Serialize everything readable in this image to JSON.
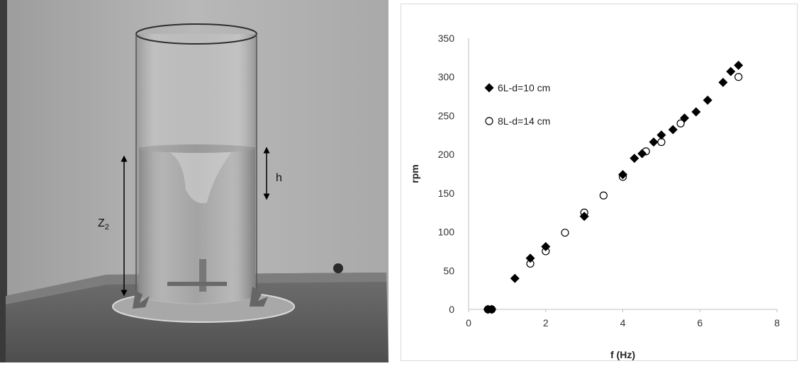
{
  "photo": {
    "labels": {
      "z2_main": "Z",
      "z2_sub": "2",
      "h": "h"
    }
  },
  "chart_data": {
    "type": "scatter",
    "xlabel": "f (Hz)",
    "ylabel": "rpm",
    "xlim": [
      0,
      8
    ],
    "ylim": [
      0,
      350
    ],
    "xticks": [
      0,
      2,
      4,
      6,
      8
    ],
    "yticks": [
      0,
      50,
      100,
      150,
      200,
      250,
      300,
      350
    ],
    "grid": false,
    "legend_position": "top-left",
    "series": [
      {
        "name": "6L-d=10 cm",
        "marker": "diamond-filled",
        "color": "#000000",
        "points": [
          [
            0.5,
            0
          ],
          [
            0.6,
            0
          ],
          [
            1.2,
            40
          ],
          [
            1.6,
            66
          ],
          [
            2.0,
            81
          ],
          [
            3.0,
            120
          ],
          [
            4.0,
            174
          ],
          [
            4.3,
            195
          ],
          [
            4.5,
            201
          ],
          [
            4.8,
            216
          ],
          [
            5.0,
            225
          ],
          [
            5.3,
            232
          ],
          [
            5.6,
            247
          ],
          [
            5.9,
            255
          ],
          [
            6.2,
            270
          ],
          [
            6.6,
            293
          ],
          [
            6.8,
            307
          ],
          [
            7.0,
            315
          ]
        ]
      },
      {
        "name": "8L-d=14 cm",
        "marker": "circle-open",
        "color": "#000000",
        "points": [
          [
            0.5,
            0
          ],
          [
            0.6,
            0
          ],
          [
            1.6,
            59
          ],
          [
            2.0,
            75
          ],
          [
            2.5,
            99
          ],
          [
            3.0,
            125
          ],
          [
            3.5,
            147
          ],
          [
            4.0,
            171
          ],
          [
            4.6,
            204
          ],
          [
            5.0,
            216
          ],
          [
            5.5,
            240
          ],
          [
            7.0,
            300
          ]
        ]
      }
    ]
  }
}
